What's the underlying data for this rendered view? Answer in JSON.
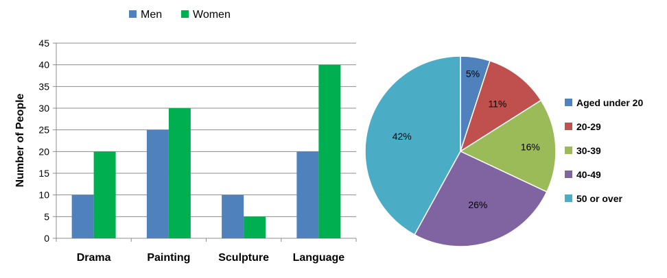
{
  "chart_data": [
    {
      "type": "bar",
      "title": "",
      "xlabel": "",
      "ylabel": "Number of People",
      "ylim": [
        0,
        45
      ],
      "yticks": [
        0,
        5,
        10,
        15,
        20,
        25,
        30,
        35,
        40,
        45
      ],
      "grid": true,
      "legend": "top",
      "categories": [
        "Drama",
        "Painting",
        "Sculpture",
        "Language"
      ],
      "series": [
        {
          "name": "Men",
          "color": "#4f81bd",
          "values": [
            10,
            25,
            10,
            20
          ]
        },
        {
          "name": "Women",
          "color": "#00b050",
          "values": [
            20,
            30,
            5,
            40
          ]
        }
      ]
    },
    {
      "type": "pie",
      "title": "",
      "legend": "right",
      "slices": [
        {
          "label": "Aged under 20",
          "value": 5,
          "display": "5%",
          "color": "#4f81bd"
        },
        {
          "label": "20-29",
          "value": 11,
          "display": "11%",
          "color": "#c0504d"
        },
        {
          "label": "30-39",
          "value": 16,
          "display": "16%",
          "color": "#9bbb59"
        },
        {
          "label": "40-49",
          "value": 26,
          "display": "26%",
          "color": "#8064a2"
        },
        {
          "label": "50 or over",
          "value": 42,
          "display": "42%",
          "color": "#4bacc6"
        }
      ]
    }
  ]
}
